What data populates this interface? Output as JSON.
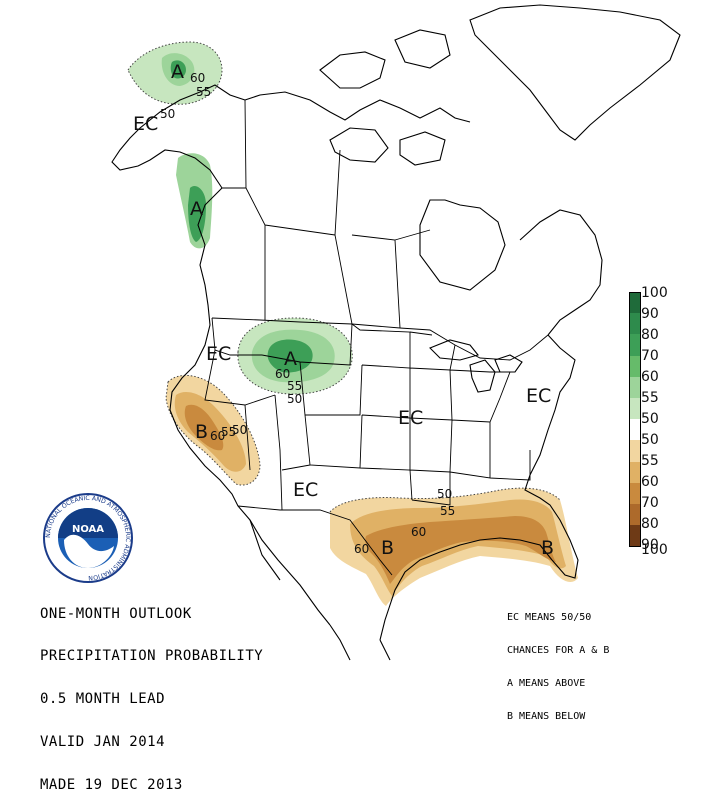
{
  "regions": {
    "alaska": {
      "label": "A",
      "contours": [
        "60",
        "55",
        "50"
      ]
    },
    "pacific_nw": {
      "label": "A"
    },
    "northern_rockies": {
      "label": "A",
      "contours": [
        "60",
        "55",
        "50"
      ]
    },
    "california": {
      "label": "B",
      "contours": [
        "55",
        "60",
        "50"
      ]
    },
    "gulf_coast": {
      "labels": [
        "B",
        "B"
      ],
      "contours": [
        "50",
        "55",
        "60",
        "60"
      ]
    },
    "ec_labels": [
      "EC",
      "EC",
      "EC",
      "EC",
      "EC"
    ]
  },
  "legend": {
    "above": {
      "ticks": [
        "100",
        "90",
        "80",
        "70",
        "60",
        "55",
        "50"
      ],
      "colors": [
        "#1f6b3a",
        "#2e8b4c",
        "#3d9f57",
        "#66bb6a",
        "#9dd49a",
        "#c7e6bf"
      ]
    },
    "below": {
      "ticks": [
        "50",
        "55",
        "60",
        "70",
        "80",
        "90",
        "100"
      ],
      "colors": [
        "#f2d6a0",
        "#e0b165",
        "#c98a3e",
        "#ad6a2b",
        "#8f4f1f",
        "#6e3a16"
      ]
    }
  },
  "info": {
    "line1": "ONE-MONTH OUTLOOK",
    "line2": "PRECIPITATION PROBABILITY",
    "line3": "0.5 MONTH LEAD",
    "line4": "VALID JAN 2014",
    "line5": "MADE 19 DEC 2013"
  },
  "key": {
    "line1": "EC MEANS 50/50",
    "line2": "CHANCES FOR A & B",
    "line3": "A MEANS ABOVE",
    "line4": "B MEANS BELOW"
  },
  "logo": {
    "text": "NOAA",
    "ring_text": "NATIONAL OCEANIC AND ATMOSPHERIC ADMINISTRATION"
  },
  "colors": {
    "above_light": "#c7e6bf",
    "above_mid": "#9dd49a",
    "above_dark": "#3d9f57",
    "below_light": "#f2d6a0",
    "below_mid": "#e0b165",
    "below_dark": "#b8742f"
  }
}
